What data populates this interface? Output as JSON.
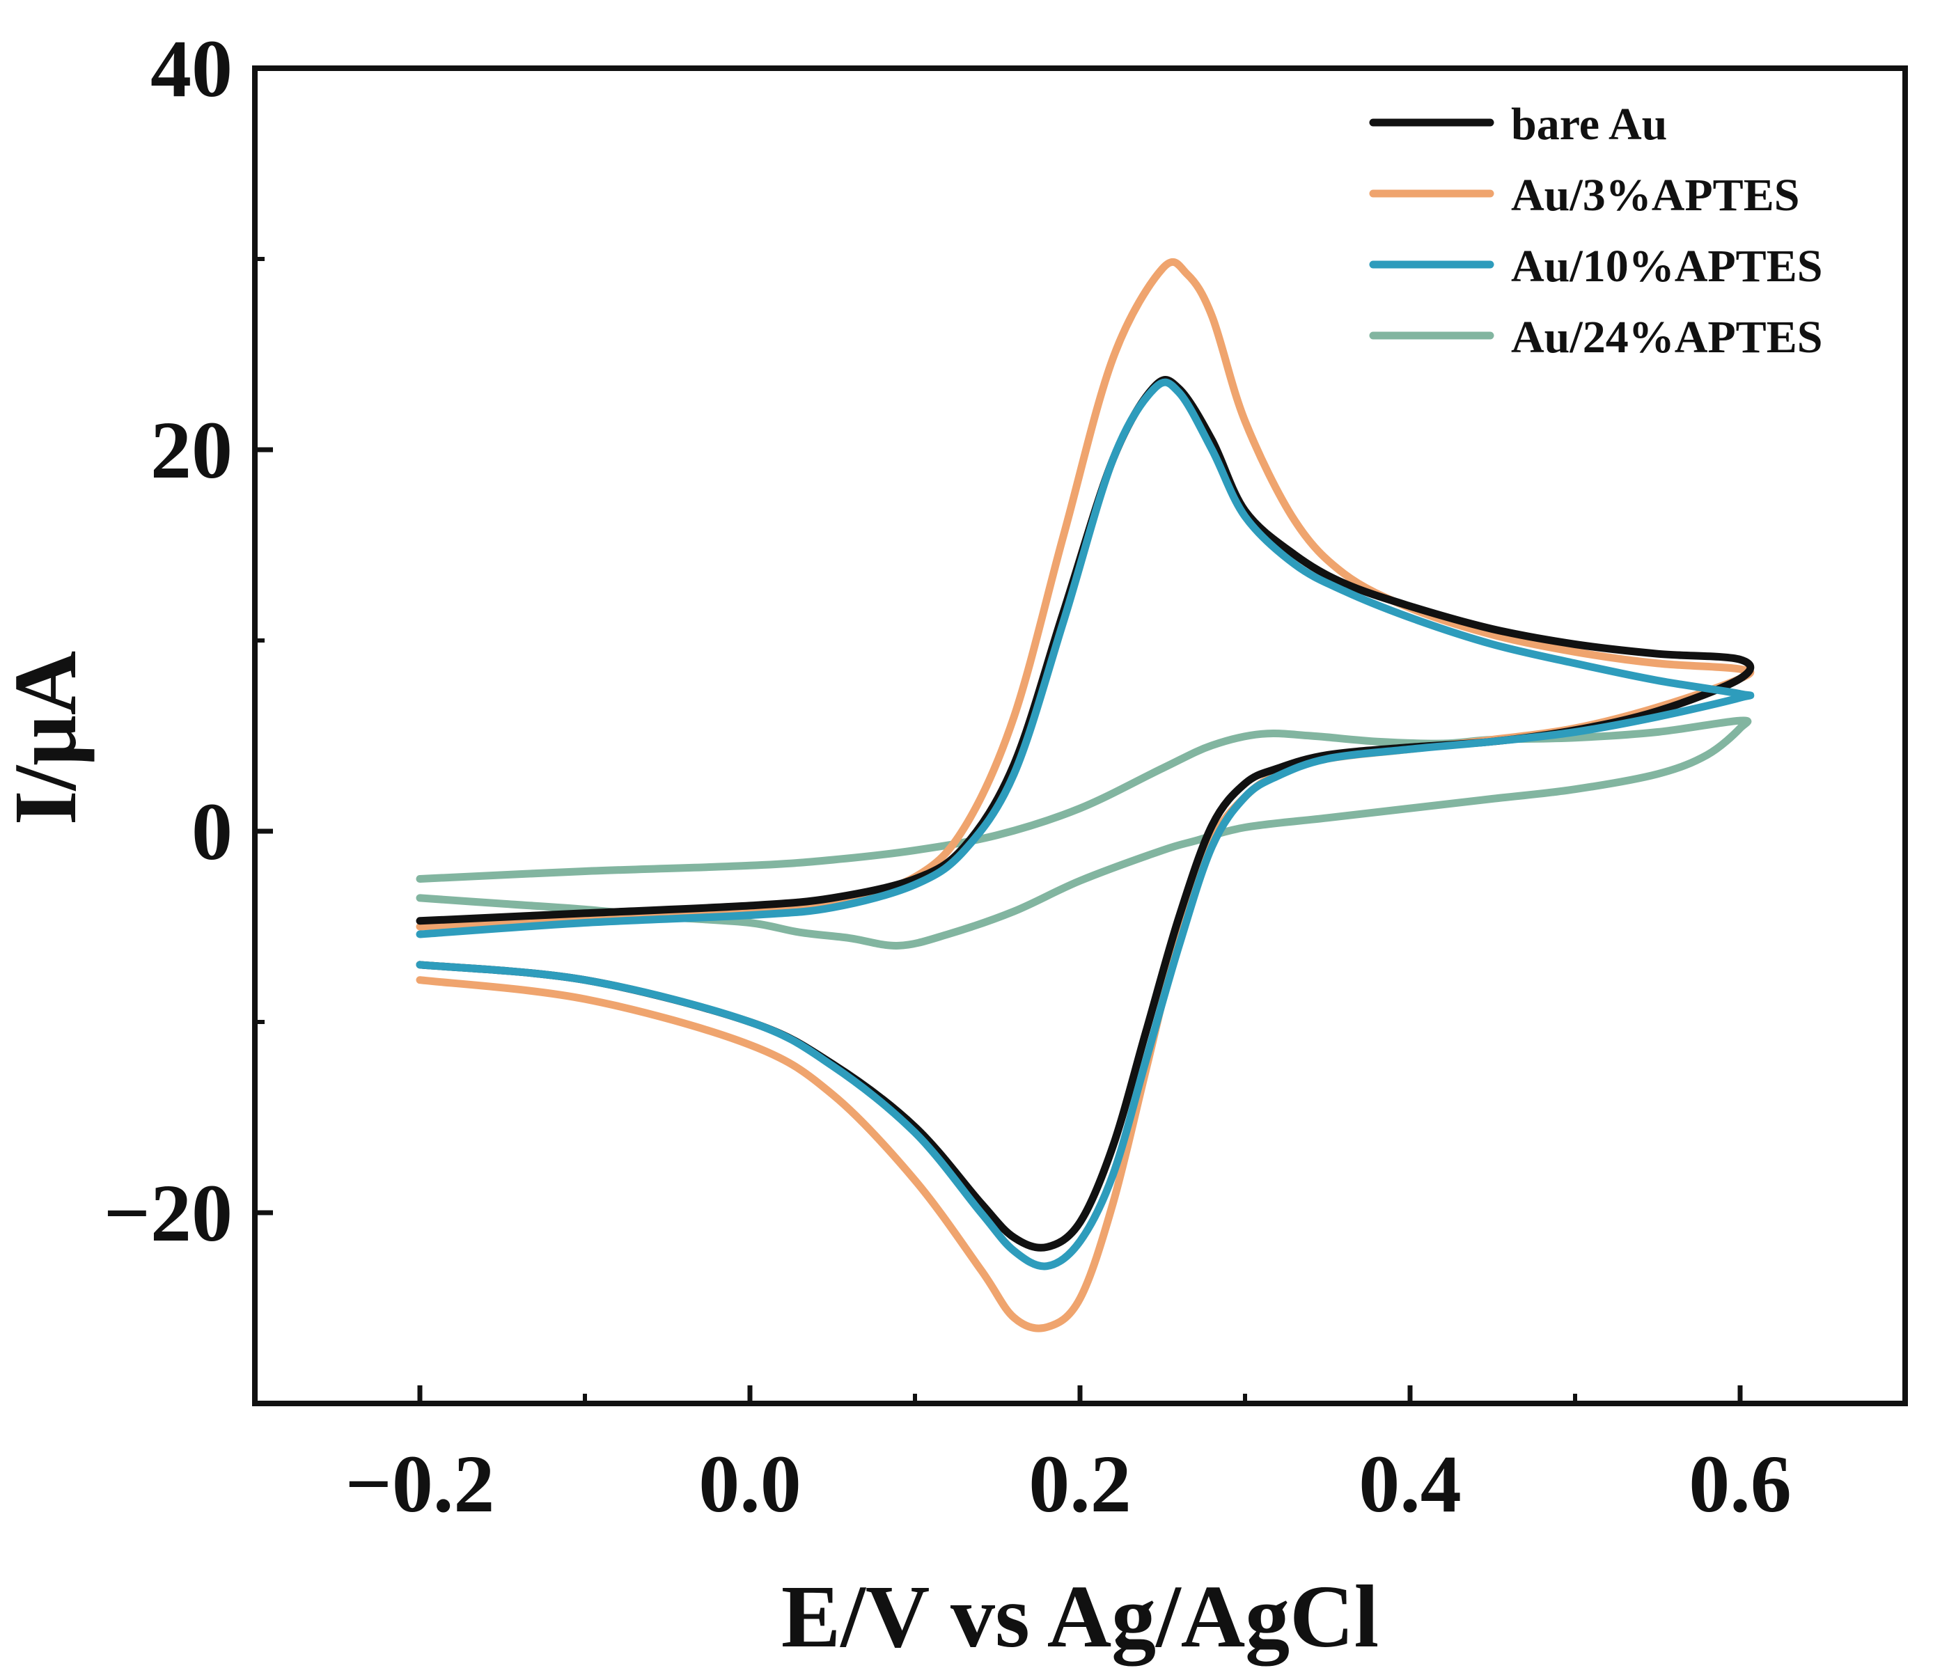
{
  "chart_data": {
    "type": "line",
    "title": "",
    "xlabel": "E/V vs Ag/AgCl",
    "ylabel": "I/μA",
    "xlim": [
      -0.3,
      0.7
    ],
    "ylim": [
      -30,
      40
    ],
    "xticks": [
      -0.2,
      0.0,
      0.2,
      0.4,
      0.6
    ],
    "xtick_labels": [
      "−0.2",
      "0.0",
      "0.2",
      "0.4",
      "0.6"
    ],
    "yticks": [
      -20,
      0,
      20,
      40
    ],
    "ytick_labels": [
      "−20",
      "0",
      "20",
      "40"
    ],
    "grid": false,
    "legend_position": "top-right",
    "series": [
      {
        "name": "bare Au",
        "color": "#111111",
        "forward": [
          [
            -0.2,
            -4.7
          ],
          [
            -0.1,
            -4.3
          ],
          [
            0.0,
            -3.9
          ],
          [
            0.05,
            -3.5
          ],
          [
            0.1,
            -2.5
          ],
          [
            0.13,
            -0.8
          ],
          [
            0.16,
            3.5
          ],
          [
            0.19,
            11.5
          ],
          [
            0.22,
            19.5
          ],
          [
            0.245,
            23.3
          ],
          [
            0.26,
            23.2
          ],
          [
            0.28,
            20.5
          ],
          [
            0.3,
            16.8
          ],
          [
            0.33,
            14.5
          ],
          [
            0.36,
            13.0
          ],
          [
            0.4,
            11.8
          ],
          [
            0.45,
            10.6
          ],
          [
            0.5,
            9.8
          ],
          [
            0.55,
            9.3
          ],
          [
            0.6,
            9.0
          ]
        ],
        "reverse": [
          [
            0.6,
            8.0
          ],
          [
            0.55,
            6.3
          ],
          [
            0.5,
            5.3
          ],
          [
            0.45,
            4.7
          ],
          [
            0.4,
            4.4
          ],
          [
            0.35,
            4.0
          ],
          [
            0.32,
            3.3
          ],
          [
            0.3,
            2.5
          ],
          [
            0.28,
            0.3
          ],
          [
            0.26,
            -4.5
          ],
          [
            0.24,
            -10.5
          ],
          [
            0.22,
            -16.5
          ],
          [
            0.2,
            -20.5
          ],
          [
            0.18,
            -21.8
          ],
          [
            0.16,
            -21.3
          ],
          [
            0.14,
            -19.5
          ],
          [
            0.1,
            -15.5
          ],
          [
            0.05,
            -12.2
          ],
          [
            0.0,
            -10.0
          ],
          [
            -0.1,
            -7.8
          ],
          [
            -0.2,
            -7.0
          ]
        ]
      },
      {
        "name": "Au/3%APTES",
        "color": "#EFA46E",
        "forward": [
          [
            -0.2,
            -5.0
          ],
          [
            -0.1,
            -4.5
          ],
          [
            0.0,
            -4.2
          ],
          [
            0.05,
            -3.8
          ],
          [
            0.1,
            -2.4
          ],
          [
            0.13,
            0.2
          ],
          [
            0.16,
            6.0
          ],
          [
            0.19,
            15.5
          ],
          [
            0.22,
            24.8
          ],
          [
            0.25,
            29.5
          ],
          [
            0.265,
            29.2
          ],
          [
            0.28,
            27.0
          ],
          [
            0.3,
            21.5
          ],
          [
            0.33,
            16.3
          ],
          [
            0.36,
            13.5
          ],
          [
            0.4,
            11.7
          ],
          [
            0.45,
            10.3
          ],
          [
            0.5,
            9.4
          ],
          [
            0.55,
            8.8
          ],
          [
            0.6,
            8.5
          ]
        ],
        "reverse": [
          [
            0.6,
            8.0
          ],
          [
            0.55,
            6.5
          ],
          [
            0.5,
            5.4
          ],
          [
            0.45,
            4.8
          ],
          [
            0.4,
            4.3
          ],
          [
            0.35,
            3.8
          ],
          [
            0.32,
            3.0
          ],
          [
            0.3,
            1.8
          ],
          [
            0.28,
            -0.5
          ],
          [
            0.26,
            -5.5
          ],
          [
            0.24,
            -12.5
          ],
          [
            0.22,
            -19.5
          ],
          [
            0.2,
            -24.5
          ],
          [
            0.18,
            -26.0
          ],
          [
            0.16,
            -25.5
          ],
          [
            0.14,
            -23.0
          ],
          [
            0.1,
            -18.3
          ],
          [
            0.05,
            -13.8
          ],
          [
            0.0,
            -11.2
          ],
          [
            -0.1,
            -8.8
          ],
          [
            -0.2,
            -7.8
          ]
        ]
      },
      {
        "name": "Au/10%APTES",
        "color": "#2E9CBC",
        "forward": [
          [
            -0.2,
            -5.4
          ],
          [
            -0.1,
            -4.8
          ],
          [
            0.0,
            -4.4
          ],
          [
            0.05,
            -4.0
          ],
          [
            0.1,
            -2.8
          ],
          [
            0.13,
            -1.0
          ],
          [
            0.16,
            3.0
          ],
          [
            0.19,
            11.0
          ],
          [
            0.22,
            19.5
          ],
          [
            0.245,
            23.2
          ],
          [
            0.26,
            23.0
          ],
          [
            0.28,
            20.0
          ],
          [
            0.3,
            16.5
          ],
          [
            0.33,
            14.0
          ],
          [
            0.36,
            12.6
          ],
          [
            0.4,
            11.2
          ],
          [
            0.45,
            9.8
          ],
          [
            0.5,
            8.8
          ],
          [
            0.55,
            7.9
          ],
          [
            0.6,
            7.2
          ]
        ],
        "reverse": [
          [
            0.6,
            7.0
          ],
          [
            0.55,
            6.0
          ],
          [
            0.5,
            5.2
          ],
          [
            0.45,
            4.7
          ],
          [
            0.4,
            4.3
          ],
          [
            0.35,
            3.8
          ],
          [
            0.32,
            2.9
          ],
          [
            0.3,
            1.8
          ],
          [
            0.28,
            -0.8
          ],
          [
            0.26,
            -6.0
          ],
          [
            0.24,
            -12.0
          ],
          [
            0.22,
            -18.0
          ],
          [
            0.2,
            -21.5
          ],
          [
            0.18,
            -22.8
          ],
          [
            0.16,
            -22.0
          ],
          [
            0.14,
            -20.0
          ],
          [
            0.1,
            -15.8
          ],
          [
            0.05,
            -12.3
          ],
          [
            0.0,
            -10.0
          ],
          [
            -0.1,
            -7.8
          ],
          [
            -0.2,
            -7.0
          ]
        ]
      },
      {
        "name": "Au/24%APTES",
        "color": "#82B5A0",
        "forward": [
          [
            -0.2,
            -2.5
          ],
          [
            -0.1,
            -2.1
          ],
          [
            0.0,
            -1.8
          ],
          [
            0.05,
            -1.5
          ],
          [
            0.1,
            -1.0
          ],
          [
            0.15,
            -0.2
          ],
          [
            0.2,
            1.2
          ],
          [
            0.25,
            3.3
          ],
          [
            0.28,
            4.5
          ],
          [
            0.31,
            5.1
          ],
          [
            0.34,
            5.0
          ],
          [
            0.38,
            4.7
          ],
          [
            0.42,
            4.6
          ],
          [
            0.45,
            4.8
          ],
          [
            0.5,
            4.9
          ],
          [
            0.55,
            5.2
          ],
          [
            0.6,
            5.8
          ]
        ],
        "reverse": [
          [
            0.6,
            5.4
          ],
          [
            0.58,
            4.0
          ],
          [
            0.55,
            3.0
          ],
          [
            0.5,
            2.2
          ],
          [
            0.45,
            1.7
          ],
          [
            0.4,
            1.2
          ],
          [
            0.35,
            0.7
          ],
          [
            0.3,
            0.2
          ],
          [
            0.27,
            -0.5
          ],
          [
            0.25,
            -1.0
          ],
          [
            0.2,
            -2.6
          ],
          [
            0.16,
            -4.2
          ],
          [
            0.12,
            -5.4
          ],
          [
            0.09,
            -6.0
          ],
          [
            0.06,
            -5.6
          ],
          [
            0.03,
            -5.3
          ],
          [
            0.0,
            -4.8
          ],
          [
            -0.05,
            -4.5
          ],
          [
            -0.1,
            -4.1
          ],
          [
            -0.15,
            -3.8
          ],
          [
            -0.2,
            -3.5
          ]
        ]
      }
    ]
  }
}
